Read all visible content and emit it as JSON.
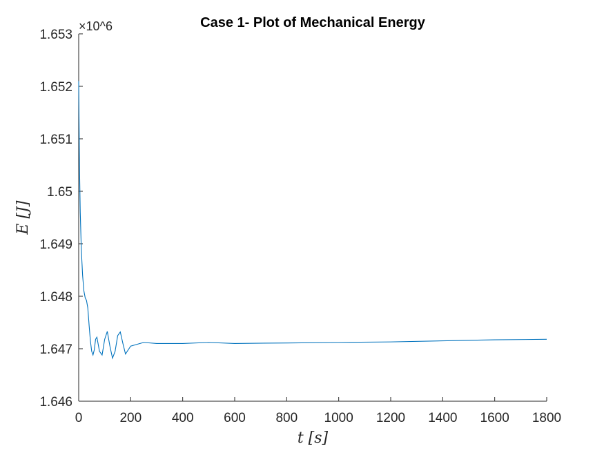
{
  "chart_data": {
    "type": "line",
    "title": "Case 1- Plot of Mechanical Energy",
    "xlabel": "t [s]",
    "ylabel": "E [J]",
    "y_exponent_label": "×10^6",
    "xlim": [
      0,
      1800
    ],
    "ylim": [
      1.646,
      1.653
    ],
    "x_ticks": [
      "0",
      "200",
      "400",
      "600",
      "800",
      "1000",
      "1200",
      "1400",
      "1600",
      "1800"
    ],
    "y_ticks": [
      "1.646",
      "1.647",
      "1.648",
      "1.649",
      "1.65",
      "1.651",
      "1.652",
      "1.653"
    ],
    "grid": false,
    "line_color": "#0072BD",
    "series": [
      {
        "x": [
          0,
          3,
          6,
          10,
          15,
          20,
          25,
          30,
          35,
          40,
          45,
          50,
          55,
          60,
          65,
          70,
          80,
          90,
          100,
          110,
          120,
          130,
          140,
          150,
          160,
          170,
          180,
          200,
          250,
          300,
          400,
          500,
          600,
          800,
          1000,
          1200,
          1400,
          1600,
          1800
        ],
        "y": [
          1.6521,
          1.6505,
          1.6496,
          1.6489,
          1.6484,
          1.6481,
          1.64797,
          1.64792,
          1.64778,
          1.64745,
          1.64715,
          1.64695,
          1.64688,
          1.64698,
          1.64718,
          1.64722,
          1.64695,
          1.64688,
          1.64718,
          1.64733,
          1.64705,
          1.64682,
          1.64695,
          1.64725,
          1.64732,
          1.6471,
          1.6469,
          1.64705,
          1.64712,
          1.6471,
          1.6471,
          1.64712,
          1.6471,
          1.64711,
          1.64712,
          1.64713,
          1.64715,
          1.64717,
          1.64718
        ]
      }
    ]
  }
}
